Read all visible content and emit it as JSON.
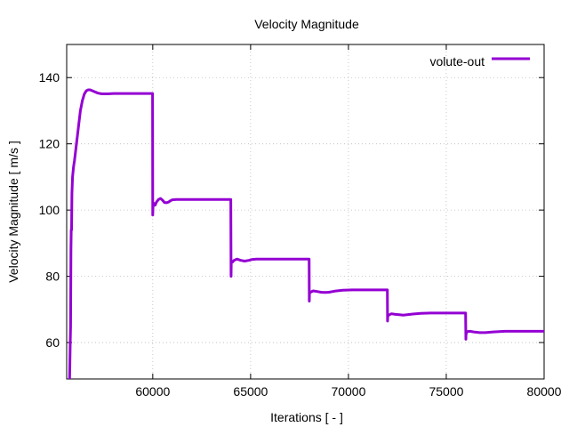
{
  "chart_data": {
    "type": "line",
    "title": "Velocity Magnitude",
    "xlabel": "Iterations [ - ]",
    "ylabel": "Velocity Magnitude [ m/s ]",
    "xlim": [
      55600,
      80000
    ],
    "ylim": [
      49,
      150
    ],
    "xticks": [
      60000,
      65000,
      70000,
      75000,
      80000
    ],
    "yticks": [
      60,
      80,
      100,
      120,
      140
    ],
    "grid": true,
    "legend_position": "top-right",
    "series": [
      {
        "name": "volute-out",
        "color": "#9400d3",
        "x": [
          55750,
          55780,
          55800,
          55820,
          55830,
          55850,
          55870,
          55900,
          55950,
          56000,
          56100,
          56200,
          56300,
          56400,
          56500,
          56600,
          56700,
          56800,
          57000,
          57200,
          57400,
          57700,
          58000,
          58500,
          59000,
          59500,
          59990,
          60000,
          60010,
          60060,
          60120,
          60200,
          60300,
          60400,
          60500,
          60600,
          60700,
          60800,
          60900,
          61000,
          61200,
          61500,
          62000,
          62500,
          63000,
          63500,
          63990,
          64000,
          64010,
          64060,
          64150,
          64300,
          64500,
          64700,
          64900,
          65100,
          65300,
          65600,
          66000,
          66500,
          67000,
          67500,
          67990,
          68000,
          68010,
          68060,
          68200,
          68400,
          68600,
          68800,
          69000,
          69300,
          69700,
          70200,
          71000,
          71500,
          71990,
          72000,
          72010,
          72060,
          72200,
          72400,
          72600,
          72800,
          73000,
          73300,
          73700,
          74200,
          75000,
          75500,
          75990,
          76000,
          76010,
          76060,
          76200,
          76400,
          76700,
          77000,
          77400,
          78000,
          79000,
          80000
        ],
        "values": [
          49,
          60,
          65,
          88,
          94,
          94,
          105,
          110,
          113,
          115,
          120,
          125,
          130,
          133,
          135,
          136,
          136.3,
          136.3,
          135.8,
          135.3,
          135.1,
          135.1,
          135.2,
          135.2,
          135.2,
          135.2,
          135.2,
          98.5,
          101,
          102,
          101.5,
          102.5,
          103.2,
          103.5,
          103,
          102.3,
          102.2,
          102.4,
          102.8,
          103.1,
          103.2,
          103.2,
          103.2,
          103.2,
          103.2,
          103.2,
          103.2,
          80,
          84,
          84.2,
          84.8,
          85.2,
          84.8,
          84.6,
          84.8,
          85.1,
          85.2,
          85.2,
          85.2,
          85.2,
          85.2,
          85.2,
          85.2,
          72.5,
          75,
          75.2,
          75.6,
          75.4,
          75.2,
          75.1,
          75.2,
          75.5,
          75.8,
          75.9,
          75.9,
          75.9,
          75.9,
          66.5,
          68,
          68.3,
          68.7,
          68.5,
          68.4,
          68.3,
          68.4,
          68.6,
          68.8,
          68.9,
          68.9,
          68.9,
          68.9,
          61,
          62.5,
          63.3,
          63.4,
          63.2,
          63.0,
          63.0,
          63.2,
          63.4,
          63.4,
          63.4
        ]
      }
    ]
  }
}
